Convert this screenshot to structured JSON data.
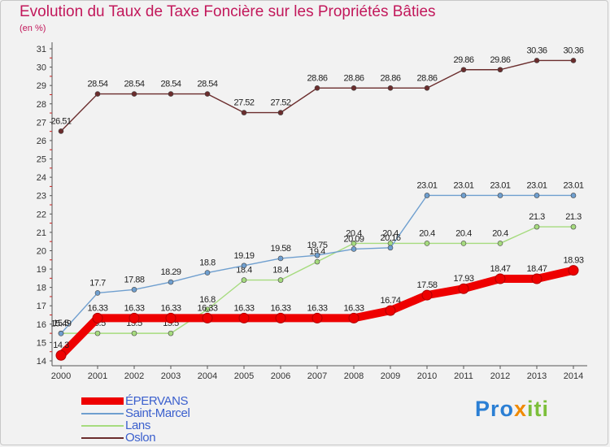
{
  "title": "Evolution du Taux de Taxe Foncière sur les Propriétés Bâties",
  "unit_label": "(en %)",
  "brand": {
    "part1": "Pro",
    "part2": "x",
    "part3": "iti"
  },
  "chart_data": {
    "type": "line",
    "x": [
      "2000",
      "2001",
      "2002",
      "2003",
      "2004",
      "2005",
      "2006",
      "2007",
      "2008",
      "2009",
      "2010",
      "2011",
      "2012",
      "2013",
      "2014"
    ],
    "ylim": [
      14,
      31
    ],
    "yticks": [
      14,
      15,
      16,
      17,
      18,
      19,
      20,
      21,
      22,
      23,
      24,
      25,
      26,
      27,
      28,
      29,
      30,
      31
    ],
    "grid": false,
    "legend_position": "bottom-left",
    "series": [
      {
        "name": "ÉPERVANS",
        "color": "#ee0000",
        "values": [
          14.3,
          16.33,
          16.33,
          16.33,
          16.33,
          16.33,
          16.33,
          16.33,
          16.33,
          16.74,
          17.58,
          17.93,
          18.47,
          18.47,
          18.93
        ],
        "labels": [
          "14.3",
          "16.33",
          "16.33",
          "16.33",
          "16.33",
          "16.33",
          "16.33",
          "16.33",
          "16.33",
          "16.74",
          "17.58",
          "17.93",
          "18.47",
          "18.47",
          "18.93"
        ]
      },
      {
        "name": "Saint-Marcel",
        "color": "#6f9fcf",
        "values": [
          15.49,
          17.7,
          17.88,
          18.29,
          18.8,
          19.19,
          19.58,
          19.75,
          20.09,
          20.16,
          23.01,
          23.01,
          23.01,
          23.01,
          23.01
        ],
        "labels": [
          "15.49",
          "17.7",
          "17.88",
          "18.29",
          "18.8",
          "19.19",
          "19.58",
          "19.75",
          "20.09",
          "20.16",
          "23.01",
          "23.01",
          "23.01",
          "23.01",
          "23.01"
        ]
      },
      {
        "name": "Lans",
        "color": "#a6db7e",
        "values": [
          15.5,
          15.5,
          15.5,
          15.5,
          16.8,
          18.4,
          18.4,
          19.4,
          20.4,
          20.4,
          20.4,
          20.4,
          20.4,
          21.3,
          21.3
        ],
        "labels": [
          "15.5",
          "15.5",
          "15.5",
          "15.5",
          "16.8",
          "18.4",
          "18.4",
          "19.4",
          "20.4",
          "20.4",
          "20.4",
          "20.4",
          "20.4",
          "21.3",
          "21.3"
        ]
      },
      {
        "name": "Oslon",
        "color": "#6b2d2d",
        "values": [
          26.51,
          28.54,
          28.54,
          28.54,
          28.54,
          27.52,
          27.52,
          28.86,
          28.86,
          28.86,
          28.86,
          29.86,
          29.86,
          30.36,
          30.36
        ],
        "labels": [
          "26.51",
          "28.54",
          "28.54",
          "28.54",
          "28.54",
          "27.52",
          "27.52",
          "28.86",
          "28.86",
          "28.86",
          "28.86",
          "29.86",
          "29.86",
          "30.36",
          "30.36"
        ]
      }
    ]
  }
}
